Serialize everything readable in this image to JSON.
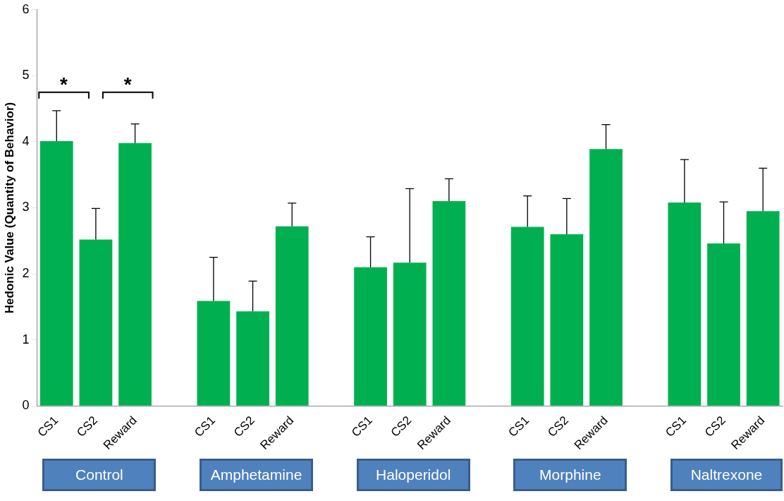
{
  "chart_data": {
    "type": "bar",
    "ylabel": "Hedonic Value (Quantity of Behavior)",
    "categories": [
      "CS1",
      "CS2",
      "Reward",
      null,
      "CS1",
      "CS2",
      "Reward",
      null,
      "CS1",
      "CS2",
      "Reward",
      null,
      "CS1",
      "CS2",
      "Reward",
      null,
      "CS1",
      "CS2",
      "Reward"
    ],
    "values": [
      4.01,
      2.52,
      3.98,
      null,
      1.59,
      1.43,
      2.72,
      null,
      2.1,
      2.17,
      3.1,
      null,
      2.71,
      2.6,
      3.89,
      null,
      3.08,
      2.46,
      2.95
    ],
    "errors": [
      [
        4.01,
        4.47
      ],
      [
        2.52,
        2.99
      ],
      [
        3.98,
        4.27
      ],
      null,
      [
        1.59,
        2.25
      ],
      [
        1.43,
        1.89
      ],
      [
        2.72,
        3.07
      ],
      null,
      [
        2.1,
        2.56
      ],
      [
        2.17,
        3.29
      ],
      [
        3.1,
        3.44
      ],
      null,
      [
        2.71,
        3.18
      ],
      [
        2.6,
        3.14
      ],
      [
        3.89,
        4.26
      ],
      null,
      [
        3.08,
        3.73
      ],
      [
        2.46,
        3.09
      ],
      [
        2.95,
        3.6
      ]
    ],
    "color": "#00b050",
    "ylim": [
      0,
      6
    ],
    "yticks": [
      0,
      1,
      2,
      3,
      4,
      5,
      6
    ],
    "grid": false,
    "legend": false,
    "annotations": [
      "*",
      "*",
      "Control",
      "Amphetamine",
      "Haloperidol",
      "Morphine",
      "Naltrexone"
    ]
  }
}
